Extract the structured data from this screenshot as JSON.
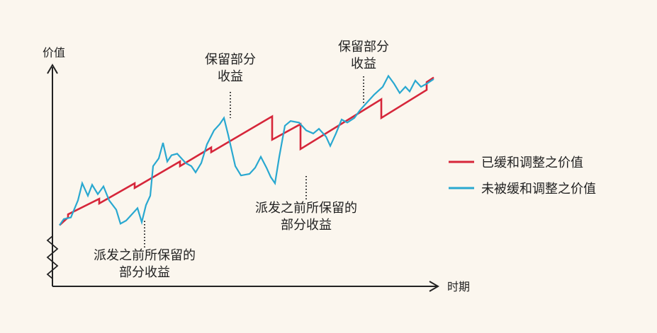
{
  "colors": {
    "background": "#fbf6ee",
    "adjusted": "#d6263a",
    "unadjusted": "#29a8d0",
    "axis": "#222222"
  },
  "chart_data": {
    "type": "line",
    "ylabel": "价值",
    "xlabel": "时期",
    "grid": false,
    "legend_position": "right",
    "series": [
      {
        "name": "已缓和调整之价值",
        "color": "#d6263a",
        "points": [
          [
            0,
            7
          ],
          [
            6,
            12
          ],
          [
            6,
            14
          ],
          [
            28,
            24
          ],
          [
            28,
            21
          ],
          [
            53,
            34
          ],
          [
            53,
            31
          ],
          [
            85,
            48
          ],
          [
            85,
            45
          ],
          [
            107,
            57
          ],
          [
            107,
            54
          ],
          [
            150,
            77
          ],
          [
            150,
            62
          ],
          [
            170,
            72
          ],
          [
            170,
            56
          ],
          [
            227,
            88
          ],
          [
            227,
            76
          ],
          [
            259,
            94
          ],
          [
            259,
            99
          ],
          [
            264,
            102
          ]
        ]
      },
      {
        "name": "未被缓和调整之价值",
        "color": "#29a8d0",
        "points": [
          [
            0,
            7
          ],
          [
            3,
            11
          ],
          [
            8,
            12
          ],
          [
            13,
            23
          ],
          [
            16,
            34
          ],
          [
            20,
            26
          ],
          [
            23,
            33
          ],
          [
            27,
            27
          ],
          [
            31,
            32
          ],
          [
            35,
            23
          ],
          [
            40,
            17
          ],
          [
            43,
            8
          ],
          [
            47,
            10
          ],
          [
            51,
            14
          ],
          [
            55,
            18
          ],
          [
            58,
            9
          ],
          [
            61,
            20
          ],
          [
            64,
            26
          ],
          [
            66,
            45
          ],
          [
            70,
            50
          ],
          [
            73,
            60
          ],
          [
            76,
            48
          ],
          [
            79,
            52
          ],
          [
            83,
            53
          ],
          [
            89,
            47
          ],
          [
            93,
            45
          ],
          [
            96,
            41
          ],
          [
            100,
            47
          ],
          [
            104,
            59
          ],
          [
            109,
            68
          ],
          [
            113,
            72
          ],
          [
            116,
            76
          ],
          [
            119,
            65
          ],
          [
            124,
            45
          ],
          [
            128,
            39
          ],
          [
            134,
            40
          ],
          [
            138,
            44
          ],
          [
            142,
            51
          ],
          [
            146,
            44
          ],
          [
            149,
            38
          ],
          [
            152,
            34
          ],
          [
            155,
            51
          ],
          [
            159,
            71
          ],
          [
            163,
            74
          ],
          [
            169,
            73
          ],
          [
            174,
            68
          ],
          [
            179,
            66
          ],
          [
            183,
            69
          ],
          [
            188,
            64
          ],
          [
            191,
            58
          ],
          [
            195,
            66
          ],
          [
            199,
            75
          ],
          [
            203,
            73
          ],
          [
            208,
            76
          ],
          [
            212,
            81
          ],
          [
            217,
            86
          ],
          [
            222,
            91
          ],
          [
            228,
            96
          ],
          [
            232,
            103
          ],
          [
            236,
            98
          ],
          [
            240,
            92
          ],
          [
            244,
            96
          ],
          [
            247,
            93
          ],
          [
            251,
            100
          ],
          [
            255,
            96
          ],
          [
            259,
            98
          ],
          [
            264,
            101
          ]
        ]
      }
    ],
    "annotations": [
      {
        "lines": [
          "派发之前所保留的",
          "部分收益"
        ],
        "at": [
          58,
          9
        ]
      },
      {
        "lines": [
          "保留部分",
          "收益"
        ],
        "at": [
          116,
          76
        ]
      },
      {
        "lines": [
          "派发之前所保留的",
          "部分收益"
        ],
        "at": [
          170,
          56
        ]
      },
      {
        "lines": [
          "保留部分",
          "收益"
        ],
        "at": [
          212,
          81
        ]
      }
    ]
  }
}
